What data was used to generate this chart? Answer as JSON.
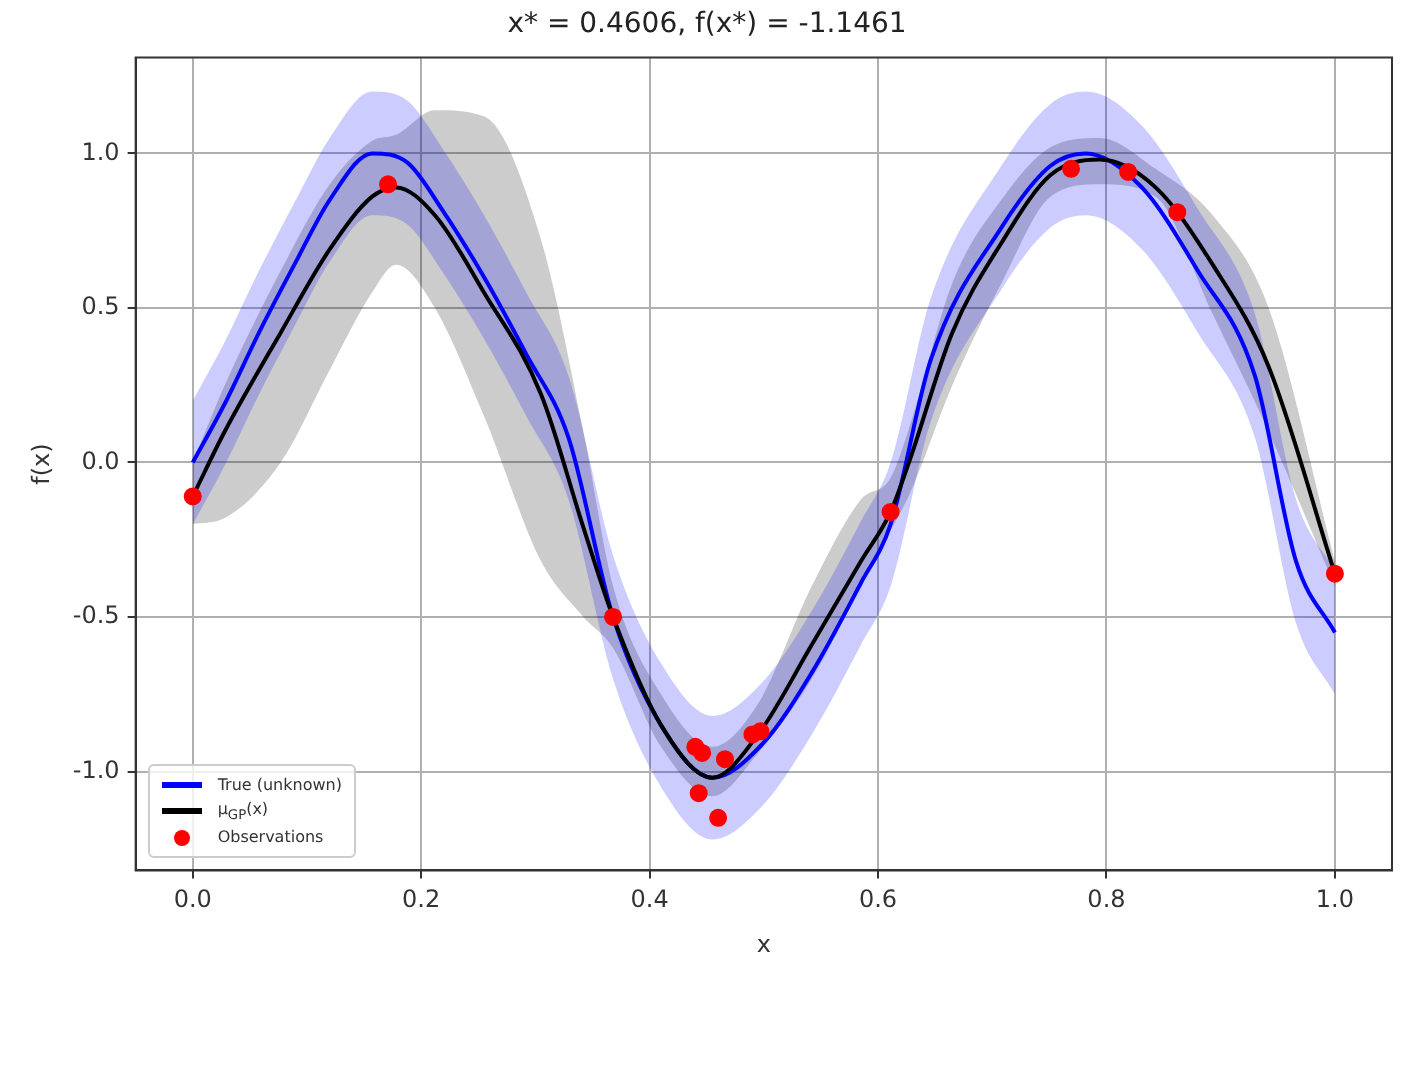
{
  "chart_data": {
    "type": "line",
    "title": "x* = 0.4606, f(x*) = -1.1461",
    "xlabel": "x",
    "ylabel": "f(x)",
    "xlim": [
      -0.05,
      1.05
    ],
    "ylim": [
      -1.32,
      1.31
    ],
    "xticks": [
      {
        "value": 0,
        "label": "0.0"
      },
      {
        "value": 0.2,
        "label": "0.2"
      },
      {
        "value": 0.4,
        "label": "0.4"
      },
      {
        "value": 0.6,
        "label": "0.6"
      },
      {
        "value": 0.8,
        "label": "0.8"
      },
      {
        "value": 1,
        "label": "1.0"
      }
    ],
    "yticks": [
      {
        "value": -1,
        "label": "-1.0"
      },
      {
        "value": -0.5,
        "label": "-0.5"
      },
      {
        "value": 0,
        "label": "0.0"
      },
      {
        "value": 0.5,
        "label": "0.5"
      },
      {
        "value": 1,
        "label": "1.0"
      }
    ],
    "grid": true,
    "legend": "bottom left",
    "line_style": "solid",
    "series": [
      {
        "name": "True (unknown)",
        "color": "#0000ff",
        "x": [
          0,
          0.028,
          0.058,
          0.089,
          0.12,
          0.157,
          0.188,
          0.218,
          0.255,
          0.292,
          0.329,
          0.368,
          0.41,
          0.455,
          0.499,
          0.542,
          0.585,
          0.611,
          0.646,
          0.708,
          0.751,
          0.782,
          0.831,
          0.88,
          0.93,
          0.966,
          1
        ],
        "values": [
          0,
          0.19,
          0.42,
          0.64,
          0.85,
          1,
          0.97,
          0.82,
          0.6,
          0.35,
          0.08,
          -0.5,
          -0.85,
          -1.02,
          -0.91,
          -0.68,
          -0.39,
          -0.2,
          0.33,
          0.76,
          0.96,
          1,
          0.89,
          0.62,
          0.28,
          -0.32,
          -0.55
        ],
        "lower": [
          -0.2,
          -0.01,
          0.22,
          0.44,
          0.65,
          0.8,
          0.77,
          0.62,
          0.4,
          0.15,
          -0.12,
          -0.7,
          -1.05,
          -1.22,
          -1.11,
          -0.88,
          -0.59,
          -0.4,
          0.13,
          0.56,
          0.76,
          0.8,
          0.69,
          0.42,
          0.08,
          -0.52,
          -0.75
        ],
        "upper": [
          0.2,
          0.39,
          0.62,
          0.84,
          1.05,
          1.2,
          1.17,
          1.02,
          0.8,
          0.55,
          0.28,
          -0.3,
          -0.65,
          -0.82,
          -0.71,
          -0.48,
          -0.19,
          0,
          0.53,
          0.96,
          1.16,
          1.2,
          1.09,
          0.82,
          0.48,
          -0.12,
          -0.35
        ]
      },
      {
        "name": "μ$_{GP}$(x)",
        "color": "#000000",
        "x": [
          0,
          0.028,
          0.077,
          0.12,
          0.157,
          0.178,
          0.212,
          0.255,
          0.305,
          0.342,
          0.368,
          0.41,
          0.455,
          0.495,
          0.542,
          0.585,
          0.611,
          0.628,
          0.665,
          0.708,
          0.751,
          0.794,
          0.843,
          0.893,
          0.942,
          1
        ],
        "values": [
          -0.11,
          0.1,
          0.42,
          0.69,
          0.86,
          0.89,
          0.8,
          0.55,
          0.22,
          -0.21,
          -0.5,
          -0.85,
          -1.02,
          -0.88,
          -0.59,
          -0.32,
          -0.16,
          0.01,
          0.42,
          0.71,
          0.93,
          0.98,
          0.89,
          0.64,
          0.31,
          -0.36
        ],
        "lower": [
          -0.2,
          -0.18,
          0.0,
          0.3,
          0.55,
          0.64,
          0.5,
          0.15,
          -0.32,
          -0.5,
          -0.6,
          -0.92,
          -1.08,
          -0.94,
          -0.7,
          -0.4,
          -0.22,
          -0.1,
          0.25,
          0.58,
          0.86,
          0.9,
          0.86,
          0.48,
          0.1,
          -0.4
        ],
        "upper": [
          0.0,
          0.25,
          0.62,
          0.9,
          1.04,
          1.06,
          1.14,
          1.12,
          0.72,
          0.1,
          -0.4,
          -0.75,
          -0.92,
          -0.78,
          -0.4,
          -0.12,
          -0.05,
          0.12,
          0.58,
          0.85,
          1.02,
          1.05,
          0.95,
          0.8,
          0.5,
          -0.32
        ]
      },
      {
        "name": "Observations",
        "type": "scatter",
        "color": "#ff0000",
        "marker": "circle",
        "x": [
          0,
          0.171,
          0.368,
          0.44,
          0.443,
          0.446,
          0.46,
          0.466,
          0.49,
          0.497,
          0.611,
          0.769,
          0.819,
          0.862,
          1
        ],
        "values": [
          -0.11,
          0.9,
          -0.5,
          -0.92,
          -1.07,
          -0.94,
          -1.15,
          -0.96,
          -0.88,
          -0.87,
          -0.16,
          0.95,
          0.94,
          0.81,
          -0.36
        ]
      }
    ]
  }
}
